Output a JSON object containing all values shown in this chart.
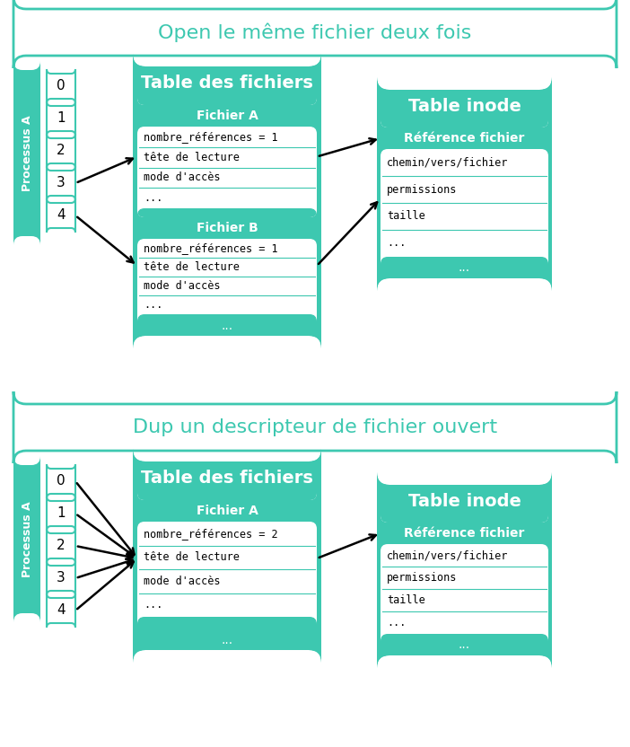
{
  "teal": "#3dc8b0",
  "white": "#ffffff",
  "black": "#000000",
  "bg": "#ffffff",
  "title1": "Open le même fichier deux fois",
  "title2": "Dup un descripteur de fichier ouvert",
  "processus_label": "Processus A",
  "fd_labels": [
    "0",
    "1",
    "2",
    "3",
    "4"
  ],
  "table_fichiers_title": "Table des fichiers",
  "table_inode_title": "Table inode",
  "fichierA_title": "Fichier A",
  "fichierB_title": "Fichier B",
  "ref_fichier_title": "Référence fichier",
  "fichierA_rows": [
    "nombre_références = 1",
    "tête de lecture",
    "mode d'accès",
    "..."
  ],
  "fichierB_rows": [
    "nombre_références = 1",
    "tête de lecture",
    "mode d'accès",
    "..."
  ],
  "inode_rows": [
    "chemin/vers/fichier",
    "permissions",
    "taille",
    "..."
  ],
  "fichierA2_title": "Fichier A",
  "fichierA2_rows": [
    "nombre_références = 2",
    "tête de lecture",
    "mode d'accès",
    "..."
  ],
  "inode2_rows": [
    "chemin/vers/fichier",
    "permissions",
    "taille",
    "..."
  ]
}
